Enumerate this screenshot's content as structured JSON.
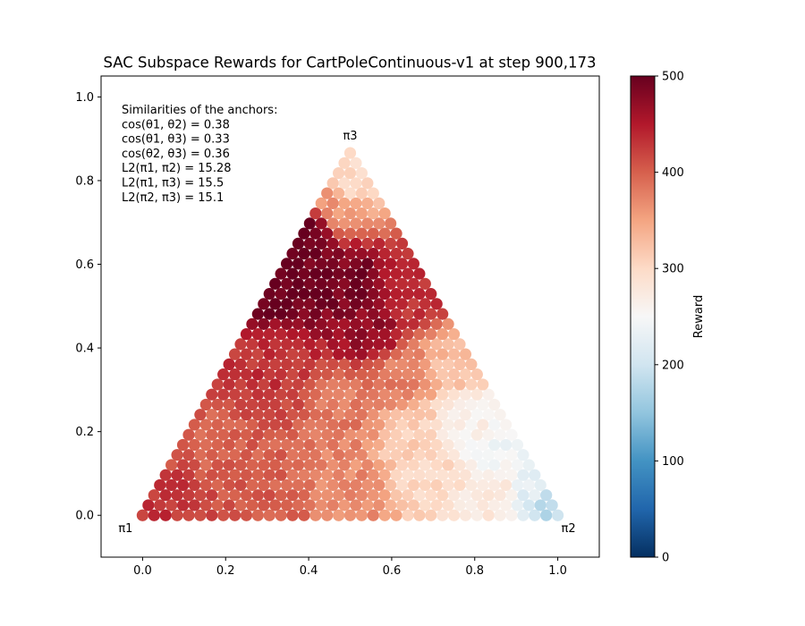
{
  "chart_data": {
    "type": "scatter",
    "title": "SAC Subspace Rewards for CartPoleContinuous-v1 at step 900,173",
    "xlim": [
      -0.1,
      1.1
    ],
    "ylim": [
      -0.1,
      1.05
    ],
    "xticks": [
      "0.0",
      "0.2",
      "0.4",
      "0.6",
      "0.8",
      "1.0"
    ],
    "yticks": [
      "0.0",
      "0.2",
      "0.4",
      "0.6",
      "0.8",
      "1.0"
    ],
    "xtick_values": [
      0.0,
      0.2,
      0.4,
      0.6,
      0.8,
      1.0
    ],
    "ytick_values": [
      0.0,
      0.2,
      0.4,
      0.6,
      0.8,
      1.0
    ],
    "grid": false,
    "anchors": [
      {
        "label": "π1",
        "x": 0.0,
        "y": 0.0
      },
      {
        "label": "π2",
        "x": 1.0,
        "y": 0.0
      },
      {
        "label": "π3",
        "x": 0.5,
        "y": 0.866
      }
    ],
    "annotation_lines": [
      "Similarities of the anchors:",
      "cos(θ1, θ2) = 0.38",
      "cos(θ1, θ3) = 0.33",
      "cos(θ2, θ3) = 0.36",
      "L2(π1, π2) = 15.28",
      "L2(π1, π3) = 15.5",
      "L2(π2, π3) = 15.1"
    ],
    "grid_steps": 36,
    "reward_field_control_points": [
      {
        "x": 0.33,
        "y": 0.55,
        "reward": 500
      },
      {
        "x": 0.4,
        "y": 0.68,
        "reward": 500
      },
      {
        "x": 0.5,
        "y": 0.55,
        "reward": 490
      },
      {
        "x": 0.55,
        "y": 0.45,
        "reward": 470
      },
      {
        "x": 0.65,
        "y": 0.5,
        "reward": 430
      },
      {
        "x": 0.3,
        "y": 0.35,
        "reward": 430
      },
      {
        "x": 0.15,
        "y": 0.18,
        "reward": 400
      },
      {
        "x": 0.05,
        "y": 0.02,
        "reward": 430
      },
      {
        "x": 0.3,
        "y": 0.05,
        "reward": 400
      },
      {
        "x": 0.5,
        "y": 0.25,
        "reward": 380
      },
      {
        "x": 0.5,
        "y": 0.05,
        "reward": 370
      },
      {
        "x": 0.5,
        "y": 0.8,
        "reward": 300
      },
      {
        "x": 0.46,
        "y": 0.74,
        "reward": 360
      },
      {
        "x": 0.65,
        "y": 0.2,
        "reward": 310
      },
      {
        "x": 0.7,
        "y": 0.1,
        "reward": 300
      },
      {
        "x": 0.78,
        "y": 0.22,
        "reward": 265
      },
      {
        "x": 0.85,
        "y": 0.15,
        "reward": 245
      },
      {
        "x": 0.85,
        "y": 0.05,
        "reward": 280
      },
      {
        "x": 0.93,
        "y": 0.06,
        "reward": 225
      },
      {
        "x": 0.97,
        "y": 0.01,
        "reward": 185
      },
      {
        "x": 0.74,
        "y": 0.38,
        "reward": 330
      },
      {
        "x": 0.62,
        "y": 0.33,
        "reward": 380
      }
    ],
    "colorbar": {
      "label": "Reward",
      "min": 0,
      "max": 500,
      "ticks": [
        "0",
        "100",
        "200",
        "300",
        "400",
        "500"
      ],
      "tick_values": [
        0,
        100,
        200,
        300,
        400,
        500
      ],
      "colormap": "RdBu_r",
      "colormap_stops": [
        "#053061",
        "#2166ac",
        "#4393c3",
        "#92c5de",
        "#d1e5f0",
        "#f7f7f7",
        "#fddbc7",
        "#f4a582",
        "#d6604d",
        "#b2182b",
        "#67001f"
      ]
    }
  }
}
